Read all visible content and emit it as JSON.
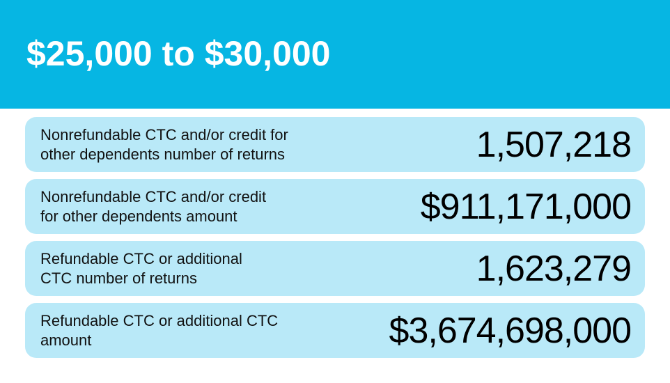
{
  "header": {
    "title": "$25,000 to $30,000",
    "background_color": "#06b6e3"
  },
  "rows": [
    {
      "label": "Nonrefundable CTC and/or credit for\nother dependents number of returns",
      "value": "1,507,218"
    },
    {
      "label": "Nonrefundable CTC and/or credit\nfor other dependents amount",
      "value": "$911,171,000"
    },
    {
      "label": "Refundable CTC or additional\nCTC number of returns",
      "value": "1,623,279"
    },
    {
      "label": "Refundable CTC or additional CTC\namount",
      "value": "$3,674,698,000"
    }
  ],
  "row_color": "#b9e9f8"
}
